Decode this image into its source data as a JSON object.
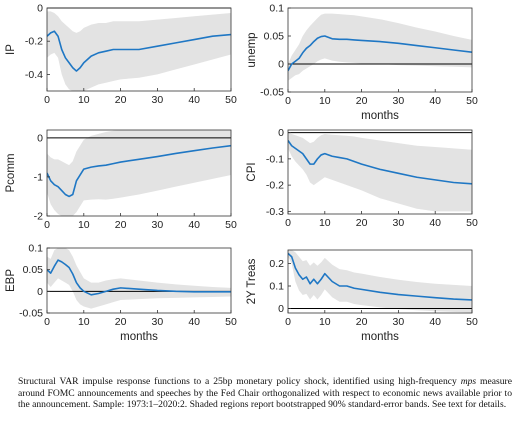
{
  "caption": {
    "part1": "Structural VAR impulse response functions to a 25bp monetary policy shock, identified using high-frequency",
    "mps": "mps",
    "part2": "measure around FOMC announcements and speeches by the Fed Chair orthogonalized with respect to economic news available prior to the announcement. Sample: 1973:1–2020:2. Shaded regions report bootstrapped 90% standard-error bands. See text for details."
  },
  "colors": {
    "line": "#1f77c4",
    "band": "#e3e3e3",
    "zero": "#000000"
  },
  "chart_data": [
    {
      "type": "line",
      "ylabel": "IP",
      "xlabel": "",
      "xlim": [
        0,
        50
      ],
      "ylim": [
        -0.5,
        0
      ],
      "yticks": [
        -0.4,
        -0.2,
        0
      ],
      "xticks": [
        0,
        10,
        20,
        30,
        40,
        50
      ],
      "grid": false,
      "x": [
        0,
        1,
        2,
        3,
        4,
        5,
        6,
        7,
        8,
        9,
        10,
        12,
        14,
        16,
        18,
        20,
        25,
        30,
        35,
        40,
        45,
        50
      ],
      "y": [
        -0.17,
        -0.15,
        -0.14,
        -0.17,
        -0.25,
        -0.3,
        -0.33,
        -0.36,
        -0.38,
        -0.36,
        -0.33,
        -0.29,
        -0.27,
        -0.26,
        -0.25,
        -0.25,
        -0.25,
        -0.23,
        -0.21,
        -0.19,
        -0.17,
        -0.16
      ],
      "upper": [
        -0.02,
        -0.02,
        -0.03,
        -0.05,
        -0.08,
        -0.1,
        -0.12,
        -0.14,
        -0.15,
        -0.14,
        -0.12,
        -0.1,
        -0.09,
        -0.09,
        -0.08,
        -0.08,
        -0.08,
        -0.07,
        -0.06,
        -0.05,
        -0.04,
        -0.03
      ],
      "lower": [
        -0.3,
        -0.28,
        -0.27,
        -0.3,
        -0.4,
        -0.46,
        -0.49,
        -0.5,
        -0.5,
        -0.5,
        -0.5,
        -0.48,
        -0.46,
        -0.45,
        -0.44,
        -0.43,
        -0.42,
        -0.4,
        -0.37,
        -0.34,
        -0.31,
        -0.28
      ]
    },
    {
      "type": "line",
      "ylabel": "unemp",
      "xlabel": "months",
      "xlim": [
        0,
        50
      ],
      "ylim": [
        -0.05,
        0.1
      ],
      "yticks": [
        -0.05,
        0,
        0.05,
        0.1
      ],
      "xticks": [
        0,
        10,
        20,
        30,
        40,
        50
      ],
      "grid": false,
      "x": [
        0,
        1,
        2,
        3,
        4,
        5,
        6,
        7,
        8,
        9,
        10,
        12,
        14,
        16,
        18,
        20,
        25,
        30,
        35,
        40,
        45,
        50
      ],
      "y": [
        -0.012,
        0.0,
        0.005,
        0.01,
        0.02,
        0.028,
        0.033,
        0.04,
        0.046,
        0.049,
        0.05,
        0.045,
        0.044,
        0.044,
        0.043,
        0.042,
        0.04,
        0.037,
        0.033,
        0.029,
        0.025,
        0.021
      ],
      "upper": [
        0.0,
        0.015,
        0.025,
        0.035,
        0.05,
        0.06,
        0.068,
        0.075,
        0.082,
        0.088,
        0.09,
        0.09,
        0.089,
        0.088,
        0.087,
        0.085,
        0.08,
        0.073,
        0.065,
        0.058,
        0.05,
        0.043
      ],
      "lower": [
        -0.03,
        -0.025,
        -0.02,
        -0.018,
        -0.012,
        -0.008,
        -0.004,
        0.0,
        0.005,
        0.008,
        0.01,
        0.006,
        0.004,
        0.003,
        0.002,
        0.001,
        0.0,
        -0.002,
        -0.003,
        -0.004,
        -0.005,
        -0.006
      ]
    },
    {
      "type": "line",
      "ylabel": "Pcomm",
      "xlabel": "",
      "xlim": [
        0,
        50
      ],
      "ylim": [
        -2,
        0.2
      ],
      "yticks": [
        -2,
        -1,
        0
      ],
      "xticks": [
        0,
        10,
        20,
        30,
        40,
        50
      ],
      "grid": false,
      "x": [
        0,
        1,
        2,
        3,
        4,
        5,
        6,
        7,
        8,
        9,
        10,
        12,
        14,
        16,
        18,
        20,
        25,
        30,
        35,
        40,
        45,
        50
      ],
      "y": [
        -0.9,
        -1.1,
        -1.2,
        -1.25,
        -1.35,
        -1.45,
        -1.5,
        -1.45,
        -1.1,
        -0.95,
        -0.8,
        -0.75,
        -0.72,
        -0.7,
        -0.66,
        -0.62,
        -0.55,
        -0.48,
        -0.4,
        -0.33,
        -0.26,
        -0.2
      ],
      "upper": [
        -0.4,
        -0.5,
        -0.55,
        -0.55,
        -0.6,
        -0.65,
        -0.7,
        -0.6,
        -0.35,
        -0.2,
        -0.05,
        0.05,
        0.1,
        0.15,
        0.18,
        0.2,
        0.2,
        0.2,
        0.2,
        0.2,
        0.2,
        0.2
      ],
      "lower": [
        -1.4,
        -1.7,
        -1.85,
        -1.95,
        -2.0,
        -2.0,
        -2.0,
        -2.0,
        -1.9,
        -1.75,
        -1.6,
        -1.58,
        -1.57,
        -1.58,
        -1.56,
        -1.53,
        -1.45,
        -1.35,
        -1.25,
        -1.15,
        -1.05,
        -0.95
      ]
    },
    {
      "type": "line",
      "ylabel": "CPI",
      "xlabel": "",
      "xlim": [
        0,
        50
      ],
      "ylim": [
        -0.31,
        0.01
      ],
      "yticks": [
        -0.3,
        -0.2,
        -0.1,
        0
      ],
      "xticks": [
        0,
        10,
        20,
        30,
        40,
        50
      ],
      "grid": false,
      "x": [
        0,
        1,
        2,
        3,
        4,
        5,
        6,
        7,
        8,
        9,
        10,
        12,
        14,
        16,
        18,
        20,
        25,
        30,
        35,
        40,
        45,
        50
      ],
      "y": [
        -0.03,
        -0.05,
        -0.06,
        -0.07,
        -0.08,
        -0.1,
        -0.12,
        -0.12,
        -0.1,
        -0.085,
        -0.08,
        -0.09,
        -0.095,
        -0.1,
        -0.11,
        -0.12,
        -0.14,
        -0.155,
        -0.17,
        -0.18,
        -0.19,
        -0.195
      ],
      "upper": [
        0.0,
        -0.005,
        -0.01,
        -0.015,
        -0.02,
        -0.03,
        -0.04,
        -0.035,
        -0.02,
        -0.01,
        -0.005,
        -0.008,
        -0.01,
        -0.012,
        -0.015,
        -0.02,
        -0.03,
        -0.04,
        -0.05,
        -0.055,
        -0.06,
        -0.065
      ],
      "lower": [
        -0.06,
        -0.09,
        -0.11,
        -0.125,
        -0.14,
        -0.16,
        -0.19,
        -0.2,
        -0.19,
        -0.18,
        -0.17,
        -0.18,
        -0.19,
        -0.2,
        -0.21,
        -0.22,
        -0.25,
        -0.27,
        -0.29,
        -0.3,
        -0.3,
        -0.3
      ]
    },
    {
      "type": "line",
      "ylabel": "EBP",
      "xlabel": "months",
      "xlim": [
        0,
        50
      ],
      "ylim": [
        -0.05,
        0.1
      ],
      "yticks": [
        -0.05,
        0,
        0.05,
        0.1
      ],
      "xticks": [
        0,
        10,
        20,
        30,
        40,
        50
      ],
      "grid": false,
      "x": [
        0,
        1,
        2,
        3,
        4,
        5,
        6,
        7,
        8,
        9,
        10,
        12,
        14,
        16,
        18,
        20,
        25,
        30,
        35,
        40,
        45,
        50
      ],
      "y": [
        0.05,
        0.042,
        0.058,
        0.072,
        0.068,
        0.062,
        0.055,
        0.04,
        0.02,
        0.008,
        0.0,
        -0.008,
        -0.005,
        0.0,
        0.005,
        0.008,
        0.005,
        0.002,
        0.0,
        -0.001,
        -0.001,
        -0.001
      ],
      "upper": [
        0.08,
        0.075,
        0.095,
        0.1,
        0.1,
        0.1,
        0.095,
        0.08,
        0.06,
        0.045,
        0.03,
        0.02,
        0.02,
        0.025,
        0.028,
        0.03,
        0.025,
        0.02,
        0.016,
        0.013,
        0.01,
        0.008
      ],
      "lower": [
        0.02,
        0.01,
        0.02,
        0.03,
        0.025,
        0.02,
        0.015,
        0.0,
        -0.02,
        -0.03,
        -0.035,
        -0.04,
        -0.035,
        -0.03,
        -0.025,
        -0.02,
        -0.018,
        -0.016,
        -0.015,
        -0.014,
        -0.013,
        -0.012
      ]
    },
    {
      "type": "line",
      "ylabel": "2Y Treas",
      "xlabel": "months",
      "xlim": [
        0,
        50
      ],
      "ylim": [
        -0.02,
        0.26
      ],
      "yticks": [
        0,
        0.1,
        0.2
      ],
      "xticks": [
        0,
        10,
        20,
        30,
        40,
        50
      ],
      "grid": false,
      "x": [
        0,
        1,
        2,
        3,
        4,
        5,
        6,
        7,
        8,
        9,
        10,
        12,
        14,
        16,
        18,
        20,
        25,
        30,
        35,
        40,
        45,
        50
      ],
      "y": [
        0.245,
        0.23,
        0.18,
        0.15,
        0.13,
        0.14,
        0.11,
        0.13,
        0.11,
        0.13,
        0.155,
        0.12,
        0.1,
        0.1,
        0.09,
        0.085,
        0.072,
        0.062,
        0.055,
        0.048,
        0.042,
        0.038
      ],
      "upper": [
        0.26,
        0.26,
        0.25,
        0.23,
        0.21,
        0.215,
        0.19,
        0.205,
        0.19,
        0.205,
        0.225,
        0.195,
        0.175,
        0.17,
        0.16,
        0.155,
        0.14,
        0.128,
        0.118,
        0.11,
        0.105,
        0.1
      ],
      "lower": [
        0.23,
        0.2,
        0.12,
        0.08,
        0.06,
        0.065,
        0.04,
        0.06,
        0.04,
        0.06,
        0.085,
        0.05,
        0.03,
        0.03,
        0.02,
        0.015,
        0.005,
        -0.003,
        -0.008,
        -0.012,
        -0.015,
        -0.018
      ]
    }
  ]
}
